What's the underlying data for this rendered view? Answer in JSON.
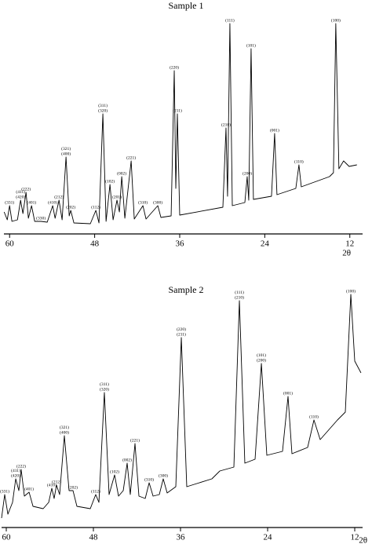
{
  "chart_data": [
    {
      "type": "line",
      "title": "Sample 1",
      "xlabel": "2θ",
      "color": "#000000",
      "xlim": [
        60.8,
        10.2
      ],
      "ylim": [
        0,
        280
      ],
      "xticks": [
        60,
        48,
        36,
        24,
        12
      ],
      "x": [
        60.77,
        60.33,
        60.0,
        59.67,
        58.89,
        58.45,
        58.12,
        57.68,
        57.35,
        56.9,
        56.46,
        55.58,
        54.69,
        53.92,
        53.58,
        53.03,
        52.59,
        52.04,
        51.59,
        51.37,
        50.93,
        48.61,
        47.83,
        47.39,
        46.84,
        46.39,
        45.84,
        45.4,
        44.85,
        44.51,
        44.18,
        43.74,
        42.85,
        42.41,
        41.19,
        40.75,
        39.09,
        38.65,
        37.21,
        36.77,
        36.55,
        36.33,
        36.0,
        29.91,
        29.47,
        29.25,
        28.92,
        28.58,
        26.81,
        26.48,
        26.26,
        25.93,
        25.6,
        23.05,
        22.61,
        22.28,
        19.62,
        19.18,
        18.85,
        14.87,
        14.31,
        13.98,
        13.54,
        12.88,
        12.1,
        11.0
      ],
      "values": [
        28,
        18,
        36,
        16,
        18,
        43,
        26,
        53,
        20,
        36,
        16,
        16,
        15,
        36,
        20,
        43,
        18,
        98,
        23,
        30,
        14,
        13,
        30,
        14,
        153,
        16,
        63,
        18,
        43,
        28,
        73,
        20,
        93,
        19,
        36,
        19,
        36,
        21,
        23,
        208,
        58,
        153,
        24,
        34,
        135,
        48,
        268,
        36,
        40,
        73,
        43,
        236,
        44,
        48,
        128,
        50,
        58,
        88,
        60,
        73,
        78,
        268,
        83,
        93,
        86,
        88
      ],
      "annotations": [
        {
          "lines": [
            "(100)"
          ],
          "x": 13.98,
          "y": 268
        },
        {
          "lines": [
            "(110)"
          ],
          "x": 19.18,
          "y": 88
        },
        {
          "lines": [
            "(001)"
          ],
          "x": 22.61,
          "y": 128
        },
        {
          "lines": [
            "(101)"
          ],
          "x": 25.93,
          "y": 236
        },
        {
          "lines": [
            "(200)"
          ],
          "x": 26.48,
          "y": 73
        },
        {
          "lines": [
            "(111)"
          ],
          "x": 28.92,
          "y": 268
        },
        {
          "lines": [
            "(210)"
          ],
          "x": 29.47,
          "y": 135
        },
        {
          "lines": [
            "(211)"
          ],
          "x": 36.33,
          "y": 153
        },
        {
          "lines": [
            "(220)"
          ],
          "x": 36.77,
          "y": 208
        },
        {
          "lines": [
            "(300)"
          ],
          "x": 39.09,
          "y": 36
        },
        {
          "lines": [
            "(310)"
          ],
          "x": 41.19,
          "y": 36
        },
        {
          "lines": [
            "(221)"
          ],
          "x": 42.85,
          "y": 93
        },
        {
          "lines": [
            "(002)"
          ],
          "x": 44.18,
          "y": 73
        },
        {
          "lines": [
            "(201)"
          ],
          "x": 44.85,
          "y": 43
        },
        {
          "lines": [
            "(102)"
          ],
          "x": 45.84,
          "y": 63
        },
        {
          "lines": [
            "(311)",
            "(320)"
          ],
          "x": 46.84,
          "y": 153
        },
        {
          "lines": [
            "(112)"
          ],
          "x": 47.83,
          "y": 30
        },
        {
          "lines": [
            "(202)"
          ],
          "x": 51.37,
          "y": 30
        },
        {
          "lines": [
            "(321)",
            "(400)"
          ],
          "x": 52.04,
          "y": 98
        },
        {
          "lines": [
            "(212)"
          ],
          "x": 53.03,
          "y": 43
        },
        {
          "lines": [
            "(410)"
          ],
          "x": 53.92,
          "y": 36
        },
        {
          "lines": [
            "(330)"
          ],
          "x": 55.58,
          "y": 16
        },
        {
          "lines": [
            "(401)"
          ],
          "x": 56.9,
          "y": 36
        },
        {
          "lines": [
            "(222)"
          ],
          "x": 57.68,
          "y": 53
        },
        {
          "lines": [
            "(411)",
            "(420)"
          ],
          "x": 58.45,
          "y": 43
        },
        {
          "lines": [
            "(331)"
          ],
          "x": 60.0,
          "y": 36
        }
      ]
    },
    {
      "type": "line",
      "title": "Sample 2",
      "xlabel": "2θ",
      "color": "#000000",
      "xlim": [
        60.65,
        10.92
      ],
      "ylim": [
        0,
        300
      ],
      "xticks": [
        60,
        48,
        36,
        24,
        12
      ],
      "x": [
        60.65,
        60.22,
        59.78,
        59.14,
        58.7,
        58.27,
        57.95,
        57.51,
        56.86,
        56.32,
        54.92,
        54.16,
        53.73,
        53.41,
        53.08,
        52.65,
        52.0,
        51.35,
        50.81,
        50.27,
        48.43,
        47.68,
        47.24,
        46.49,
        45.84,
        45.08,
        44.54,
        43.89,
        43.35,
        42.92,
        42.27,
        41.73,
        40.86,
        40.32,
        39.78,
        38.92,
        38.38,
        37.84,
        36.65,
        35.89,
        35.14,
        31.68,
        30.59,
        28.65,
        27.89,
        27.14,
        25.73,
        24.86,
        24.11,
        21.95,
        21.19,
        20.65,
        18.49,
        17.62,
        16.76,
        14.38,
        13.3,
        12.54,
        12.0,
        11.14
      ],
      "values": [
        12,
        42,
        17,
        32,
        62,
        47,
        74,
        40,
        45,
        27,
        24,
        32,
        50,
        37,
        54,
        42,
        117,
        47,
        47,
        27,
        24,
        42,
        32,
        172,
        42,
        67,
        40,
        47,
        82,
        42,
        107,
        40,
        37,
        57,
        40,
        42,
        62,
        44,
        52,
        242,
        52,
        62,
        72,
        77,
        289,
        82,
        87,
        209,
        92,
        97,
        167,
        94,
        102,
        137,
        112,
        137,
        147,
        297,
        212,
        197
      ],
      "annotations": [
        {
          "lines": [
            "(100)"
          ],
          "x": 12.54,
          "y": 297
        },
        {
          "lines": [
            "(110)"
          ],
          "x": 17.62,
          "y": 137
        },
        {
          "lines": [
            "(001)"
          ],
          "x": 21.19,
          "y": 167
        },
        {
          "lines": [
            "(101)",
            "(200)"
          ],
          "x": 24.86,
          "y": 209
        },
        {
          "lines": [
            "(111)",
            "(210)"
          ],
          "x": 27.89,
          "y": 289
        },
        {
          "lines": [
            "(220)",
            "(211)"
          ],
          "x": 35.89,
          "y": 242
        },
        {
          "lines": [
            "(300)"
          ],
          "x": 38.38,
          "y": 62
        },
        {
          "lines": [
            "(310)"
          ],
          "x": 40.32,
          "y": 57
        },
        {
          "lines": [
            "(221)"
          ],
          "x": 42.27,
          "y": 107
        },
        {
          "lines": [
            "(002)"
          ],
          "x": 43.35,
          "y": 82
        },
        {
          "lines": [
            "(102)"
          ],
          "x": 45.08,
          "y": 67
        },
        {
          "lines": [
            "(311)",
            "(320)"
          ],
          "x": 46.49,
          "y": 172
        },
        {
          "lines": [
            "(112)"
          ],
          "x": 47.68,
          "y": 42
        },
        {
          "lines": [
            "(202)"
          ],
          "x": 50.81,
          "y": 47
        },
        {
          "lines": [
            "(321)",
            "(400)"
          ],
          "x": 52.0,
          "y": 117
        },
        {
          "lines": [
            "(212)"
          ],
          "x": 53.08,
          "y": 54
        },
        {
          "lines": [
            "(410)"
          ],
          "x": 53.73,
          "y": 50
        },
        {
          "lines": [
            "(401)"
          ],
          "x": 56.86,
          "y": 45
        },
        {
          "lines": [
            "(222)"
          ],
          "x": 57.95,
          "y": 74
        },
        {
          "lines": [
            "(411)",
            "(420)"
          ],
          "x": 58.7,
          "y": 62
        },
        {
          "lines": [
            "(331)"
          ],
          "x": 60.22,
          "y": 42
        }
      ]
    }
  ]
}
